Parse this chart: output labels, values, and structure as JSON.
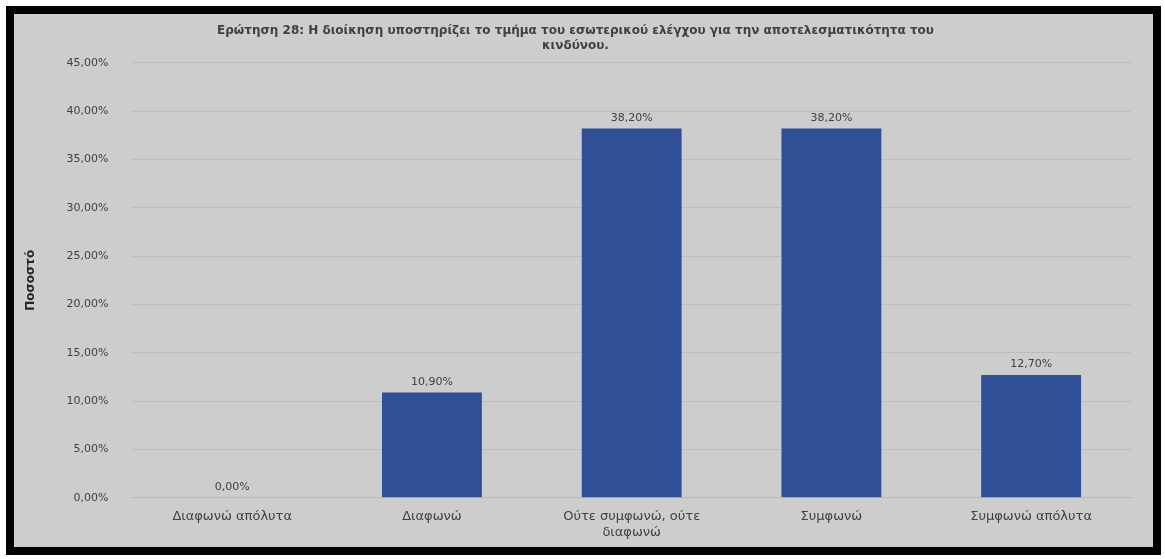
{
  "chart_data": {
    "type": "bar",
    "title": "Ερώτηση 28: Η διοίκηση υποστηρίζει το τμήμα του εσωτερικού ελέγχου για την αποτελεσματικότητα του κινδύνου.",
    "ylabel": "Ποσοστό",
    "categories": [
      "Διαφωνώ απόλυτα",
      "Διαφωνώ",
      "Ούτε συμφωνώ, ούτε διαφωνώ",
      "Συμφωνώ",
      "Συμφωνώ απόλυτα"
    ],
    "values": [
      0,
      10.9,
      38.2,
      38.2,
      12.7
    ],
    "value_labels": [
      "0,00%",
      "10,90%",
      "38,20%",
      "38,20%",
      "12,70%"
    ],
    "color": "#2f5097",
    "ylim": [
      0,
      45
    ],
    "yticks": [
      {
        "value": 0,
        "label": "0,00%"
      },
      {
        "value": 5,
        "label": "5,00%"
      },
      {
        "value": 10,
        "label": "10,00%"
      },
      {
        "value": 15,
        "label": "15,00%"
      },
      {
        "value": 20,
        "label": "20,00%"
      },
      {
        "value": 25,
        "label": "25,00%"
      },
      {
        "value": 30,
        "label": "30,00%"
      },
      {
        "value": 35,
        "label": "35,00%"
      },
      {
        "value": 40,
        "label": "40,00%"
      },
      {
        "value": 45,
        "label": "45,00%"
      }
    ],
    "grid": "y"
  }
}
